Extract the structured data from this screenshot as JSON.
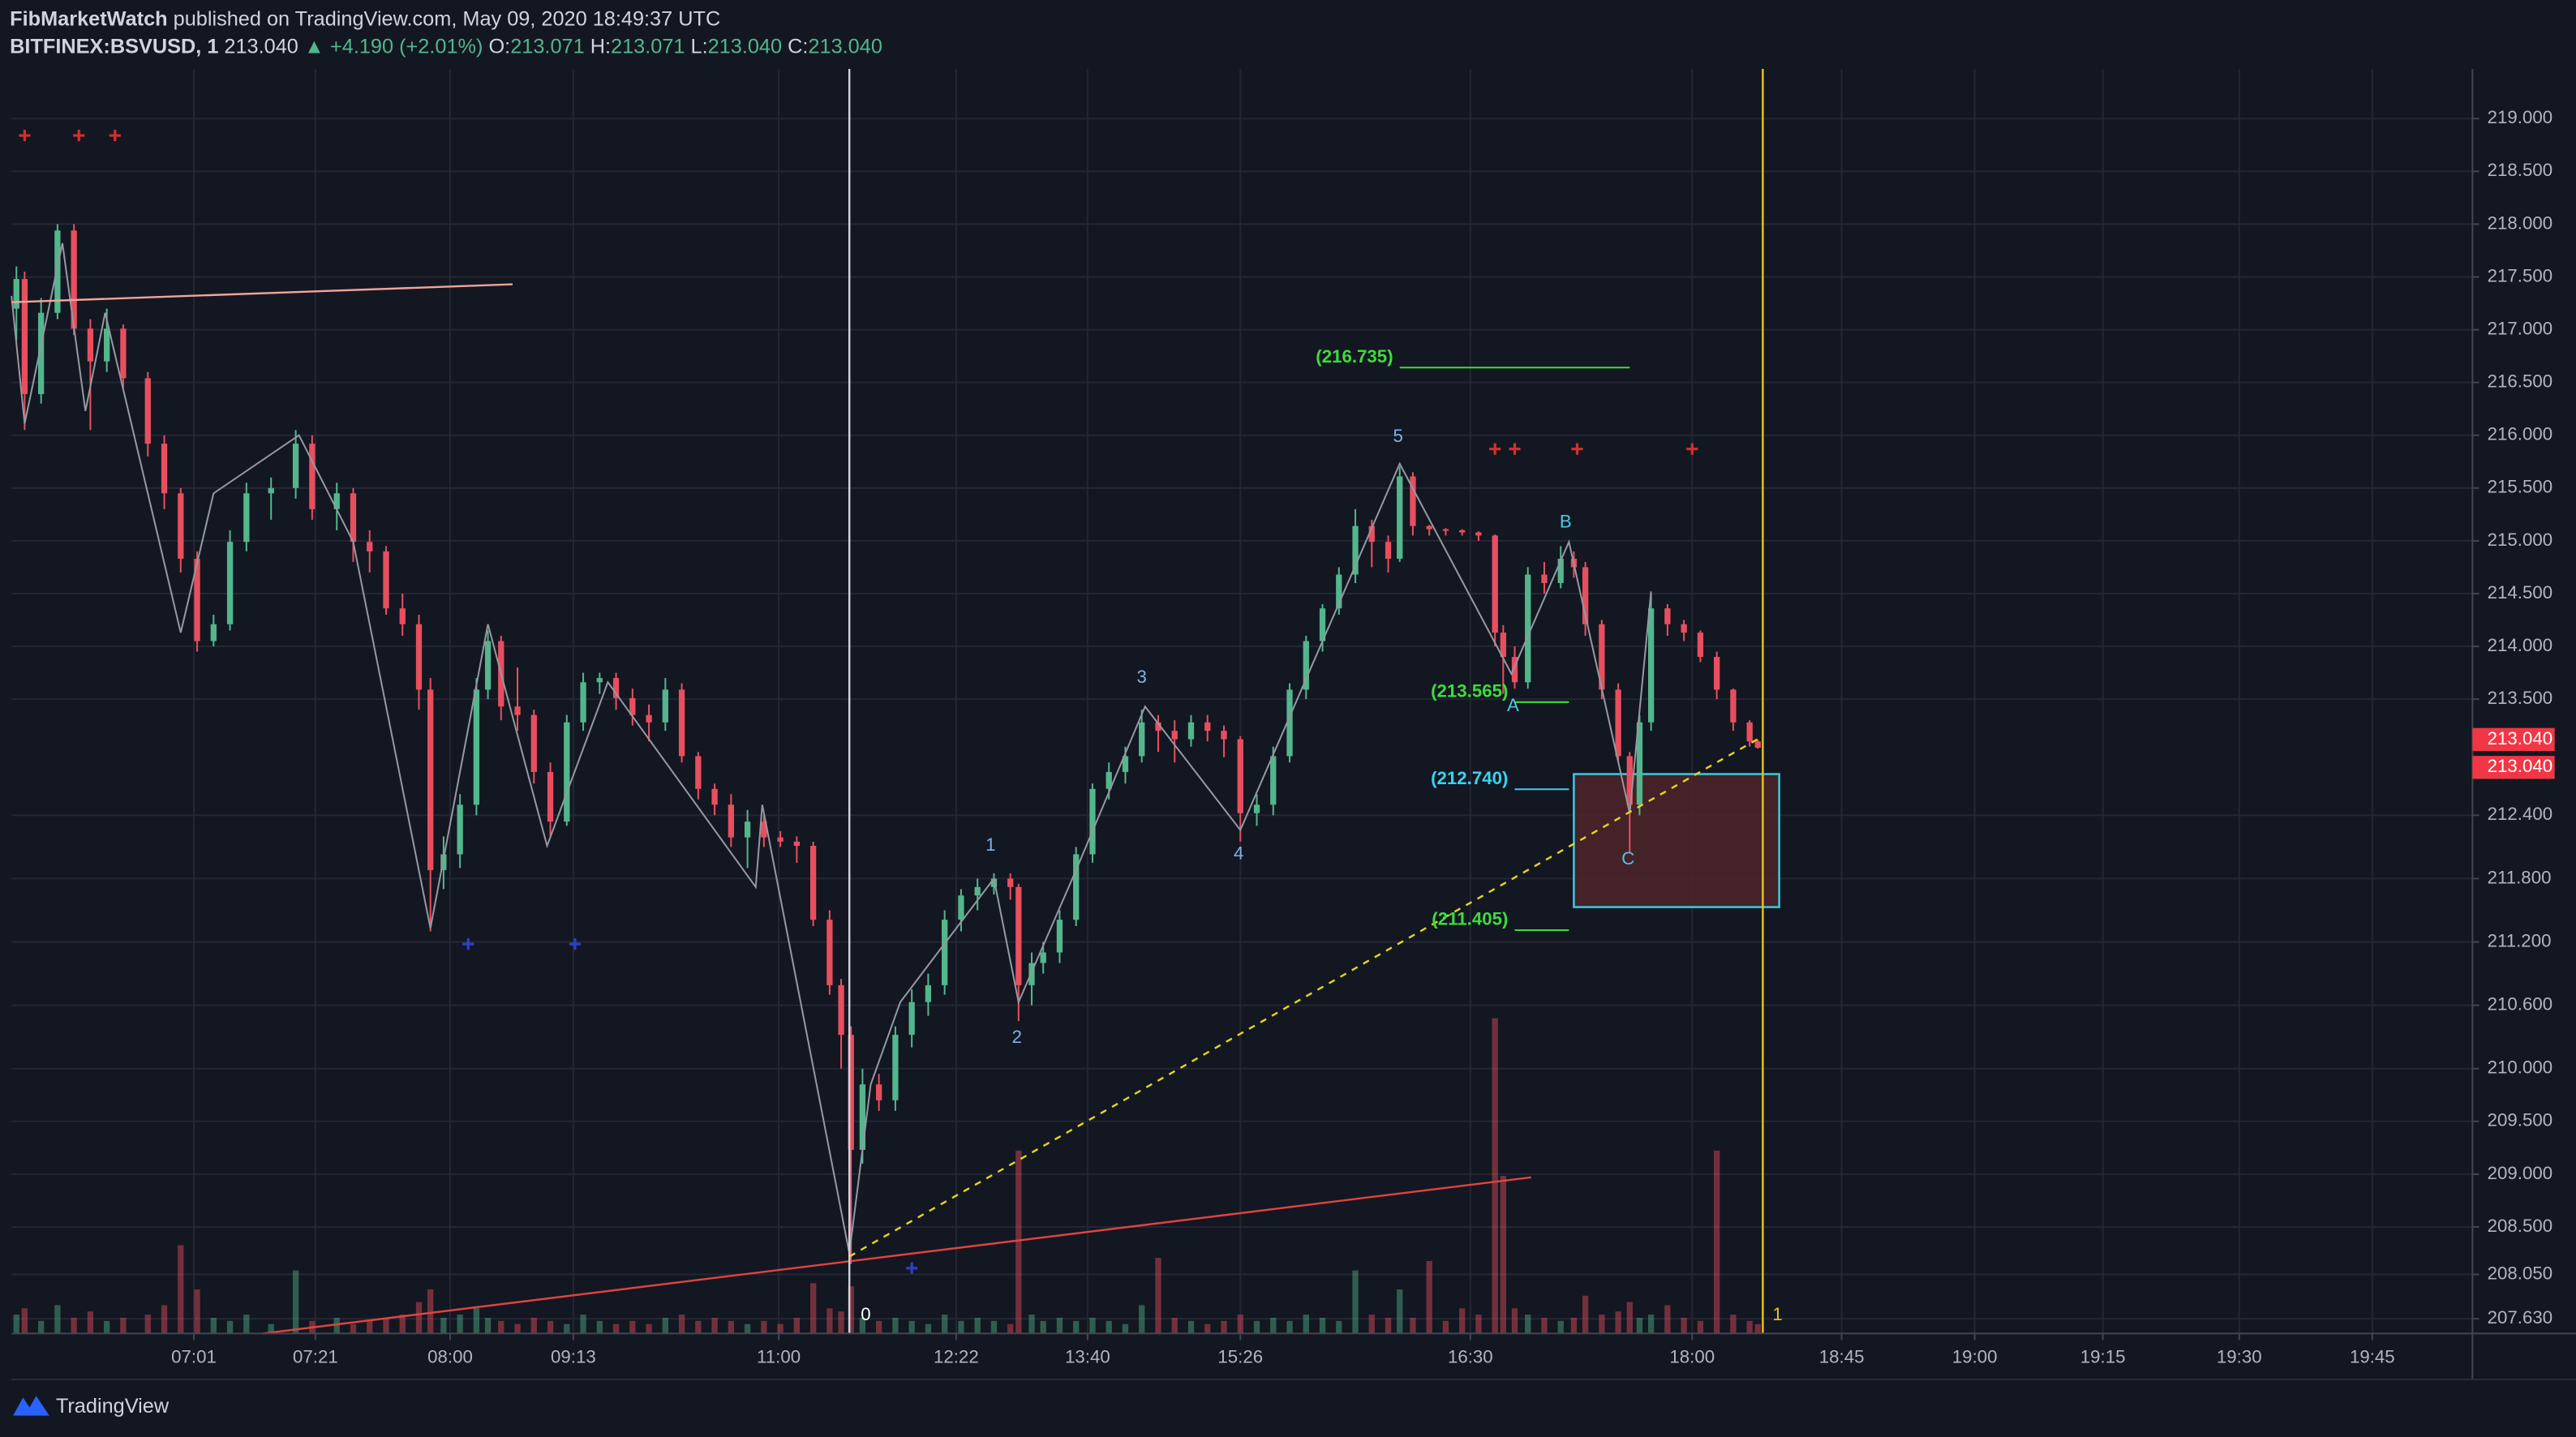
{
  "header": {
    "author": "FibMarketWatch",
    "published": "published on TradingView.com, May 09, 2020 18:49:37 UTC",
    "symbol": "BITFINEX:BSVUSD, 1",
    "last": "213.040",
    "change": "▲ +4.190 (+2.01%)",
    "ohlc": [
      {
        "key": "O:",
        "value": "213.071"
      },
      {
        "key": "H:",
        "value": "213.071"
      },
      {
        "key": "L:",
        "value": "213.040"
      },
      {
        "key": "C:",
        "value": "213.040"
      }
    ],
    "brand": "TradingView"
  },
  "chart_data": {
    "type": "candlestick",
    "up_color": "#53b68c",
    "down_color": "#e84f5e",
    "grid": true,
    "xlim": [
      1.4,
      301
    ],
    "ylim": [
      207.49,
      219.47
    ],
    "xticks": [
      {
        "value": 23.6,
        "label": "07:01"
      },
      {
        "value": 38.4,
        "label": "07:21"
      },
      {
        "value": 54.8,
        "label": "08:00"
      },
      {
        "value": 69.8,
        "label": "09:13"
      },
      {
        "value": 94.8,
        "label": "11:00"
      },
      {
        "value": 116.4,
        "label": "12:22"
      },
      {
        "value": 132.4,
        "label": "13:40"
      },
      {
        "value": 151,
        "label": "15:26"
      },
      {
        "value": 179,
        "label": "16:30"
      },
      {
        "value": 206,
        "label": "18:00"
      },
      {
        "value": 224.2,
        "label": "18:45"
      },
      {
        "value": 240.4,
        "label": "19:00"
      },
      {
        "value": 256,
        "label": "19:15"
      },
      {
        "value": 272.6,
        "label": "19:30"
      },
      {
        "value": 288.8,
        "label": "19:45"
      }
    ],
    "yticks": [
      {
        "value": 219,
        "label": "219.000"
      },
      {
        "value": 218.5,
        "label": "218.500"
      },
      {
        "value": 218,
        "label": "218.000"
      },
      {
        "value": 217.5,
        "label": "217.500"
      },
      {
        "value": 217,
        "label": "217.000"
      },
      {
        "value": 216.5,
        "label": "216.500"
      },
      {
        "value": 216,
        "label": "216.000"
      },
      {
        "value": 215.5,
        "label": "215.500"
      },
      {
        "value": 215,
        "label": "215.000"
      },
      {
        "value": 214.5,
        "label": "214.500"
      },
      {
        "value": 214,
        "label": "214.000"
      },
      {
        "value": 213.5,
        "label": "213.500"
      },
      {
        "value": 212.4,
        "label": "212.400"
      },
      {
        "value": 211.8,
        "label": "211.800"
      },
      {
        "value": 211.2,
        "label": "211.200"
      },
      {
        "value": 210.6,
        "label": "210.600"
      },
      {
        "value": 210,
        "label": "210.000"
      },
      {
        "value": 209.5,
        "label": "209.500"
      },
      {
        "value": 209,
        "label": "209.000"
      },
      {
        "value": 208.5,
        "label": "208.500"
      },
      {
        "value": 208.05,
        "label": "208.050"
      },
      {
        "value": 207.63,
        "label": "207.630"
      }
    ],
    "x": [
      2,
      3,
      5,
      7,
      9,
      11,
      13,
      15,
      18,
      20,
      22,
      24,
      26,
      28,
      30,
      33,
      36,
      38,
      41,
      43,
      45,
      47,
      49,
      51,
      52.4,
      54,
      56,
      58,
      59.4,
      61,
      63,
      65,
      67,
      69,
      71,
      73,
      75,
      77,
      79,
      81,
      83,
      85,
      87,
      89,
      91,
      93,
      95,
      97,
      99,
      101,
      102.4,
      103.6,
      105,
      107,
      109,
      111,
      113,
      115,
      117,
      119,
      121,
      123,
      124,
      125.6,
      127,
      129,
      131,
      133,
      135,
      137,
      139,
      141,
      143,
      145,
      147,
      149,
      151,
      153,
      155,
      157,
      159,
      161,
      163,
      165,
      167,
      169,
      170.4,
      172,
      174,
      176,
      178,
      180,
      182,
      183,
      184.4,
      186,
      188,
      190,
      191.6,
      193,
      195,
      197,
      198.4,
      199.6,
      201,
      203,
      205,
      207,
      209,
      211,
      213,
      214
    ],
    "open": [
      217.2,
      217.48,
      216.39,
      217.16,
      217.94,
      217.01,
      216.7,
      217.01,
      216.54,
      215.92,
      215.45,
      214.83,
      214.05,
      214.21,
      214.99,
      215.45,
      215.5,
      215.92,
      215.3,
      215.45,
      214.99,
      214.9,
      214.36,
      214.21,
      213.59,
      211.88,
      212.03,
      212.5,
      213.59,
      214.05,
      213.43,
      213.35,
      212.81,
      212.34,
      213.28,
      213.66,
      213.7,
      213.51,
      213.35,
      213.28,
      213.59,
      212.96,
      212.65,
      212.5,
      212.19,
      212.34,
      212.19,
      212.15,
      212.11,
      211.41,
      210.79,
      210.32,
      209.23,
      209.85,
      209.7,
      210.32,
      210.63,
      210.79,
      211.41,
      211.64,
      211.72,
      211.8,
      211.72,
      210.79,
      211.0,
      211.1,
      211.41,
      212.03,
      212.65,
      212.81,
      212.96,
      213.28,
      213.2,
      213.12,
      213.28,
      213.2,
      213.12,
      212.42,
      212.5,
      212.96,
      213.59,
      214.05,
      214.36,
      214.68,
      215.14,
      214.99,
      214.83,
      215.61,
      215.14,
      215.11,
      215.1,
      215.08,
      215.05,
      214.13,
      213.9,
      213.66,
      214.68,
      214.6,
      214.83,
      214.75,
      214.21,
      213.59,
      212.96,
      212.5,
      213.28,
      214.36,
      214.21,
      214.13,
      213.9,
      213.59,
      213.28,
      213.1
    ],
    "high": [
      217.6,
      217.55,
      217.3,
      218.0,
      218.0,
      217.1,
      217.2,
      217.05,
      216.6,
      216.0,
      215.5,
      214.9,
      214.3,
      215.1,
      215.55,
      215.6,
      216.05,
      216.0,
      215.55,
      215.5,
      215.1,
      214.95,
      214.5,
      214.3,
      213.7,
      212.2,
      212.6,
      213.7,
      214.15,
      214.1,
      213.8,
      213.4,
      212.9,
      213.35,
      213.75,
      213.75,
      213.75,
      213.6,
      213.45,
      213.7,
      213.65,
      213.0,
      212.7,
      212.6,
      212.45,
      212.4,
      212.25,
      212.2,
      212.15,
      211.5,
      210.85,
      210.4,
      210.0,
      209.95,
      210.4,
      210.75,
      210.9,
      211.5,
      211.7,
      211.8,
      211.85,
      211.85,
      211.75,
      211.1,
      211.2,
      211.5,
      212.1,
      212.7,
      212.9,
      213.05,
      213.4,
      213.35,
      213.3,
      213.35,
      213.35,
      213.25,
      213.15,
      212.6,
      213.05,
      213.65,
      214.1,
      214.4,
      214.75,
      215.3,
      215.2,
      215.05,
      215.7,
      215.65,
      215.15,
      215.12,
      215.11,
      215.09,
      215.06,
      214.2,
      214.0,
      214.75,
      214.8,
      214.95,
      214.9,
      214.8,
      214.25,
      213.65,
      213.0,
      213.35,
      214.5,
      214.4,
      214.25,
      214.15,
      213.95,
      213.6,
      213.3,
      213.12
    ],
    "low": [
      216.9,
      216.05,
      216.3,
      217.1,
      216.95,
      216.05,
      216.6,
      216.45,
      215.8,
      215.3,
      214.7,
      213.95,
      214.0,
      214.15,
      214.9,
      215.2,
      215.4,
      215.2,
      215.1,
      214.8,
      214.7,
      214.3,
      214.1,
      213.4,
      211.3,
      211.7,
      211.9,
      212.4,
      213.5,
      213.3,
      213.2,
      212.7,
      212.2,
      212.3,
      213.2,
      213.55,
      213.4,
      213.25,
      213.1,
      213.2,
      212.9,
      212.55,
      212.4,
      212.1,
      211.9,
      212.1,
      212.1,
      211.95,
      211.35,
      210.7,
      210.0,
      208.15,
      209.1,
      209.6,
      209.6,
      210.2,
      210.5,
      210.7,
      211.3,
      211.5,
      211.65,
      211.6,
      210.45,
      210.6,
      210.9,
      211.0,
      211.35,
      211.95,
      212.55,
      212.7,
      212.9,
      213.0,
      212.9,
      213.05,
      213.1,
      212.95,
      212.15,
      212.3,
      212.4,
      212.9,
      213.5,
      213.95,
      214.3,
      214.6,
      214.75,
      214.7,
      214.8,
      215.05,
      215.05,
      215.05,
      215.05,
      215.0,
      214.0,
      213.55,
      213.6,
      213.6,
      214.5,
      214.55,
      214.65,
      214.1,
      213.5,
      212.9,
      212.05,
      212.4,
      213.2,
      214.1,
      214.05,
      213.85,
      213.5,
      213.2,
      213.05,
      213.03
    ],
    "close": [
      217.48,
      216.39,
      217.16,
      217.94,
      217.01,
      216.7,
      217.01,
      216.54,
      215.92,
      215.45,
      214.83,
      214.05,
      214.21,
      214.99,
      215.45,
      215.5,
      215.92,
      215.3,
      215.45,
      214.99,
      214.9,
      214.36,
      214.21,
      213.59,
      211.88,
      212.03,
      212.5,
      213.59,
      214.05,
      213.43,
      213.35,
      212.81,
      212.34,
      213.28,
      213.66,
      213.7,
      213.51,
      213.35,
      213.28,
      213.59,
      212.96,
      212.65,
      212.5,
      212.19,
      212.34,
      212.19,
      212.15,
      212.11,
      211.41,
      210.79,
      210.32,
      209.23,
      209.85,
      209.7,
      210.32,
      210.63,
      210.79,
      211.41,
      211.64,
      211.72,
      211.8,
      211.72,
      210.79,
      211.0,
      211.1,
      211.41,
      212.03,
      212.65,
      212.81,
      212.96,
      213.28,
      213.2,
      213.12,
      213.28,
      213.2,
      213.12,
      212.42,
      212.5,
      212.96,
      213.59,
      214.05,
      214.36,
      214.68,
      215.14,
      214.99,
      214.83,
      215.61,
      215.14,
      215.11,
      215.1,
      215.08,
      215.05,
      214.13,
      213.9,
      213.66,
      214.68,
      214.6,
      214.83,
      214.75,
      214.21,
      213.59,
      212.96,
      212.5,
      213.28,
      214.36,
      214.21,
      214.13,
      213.9,
      213.59,
      213.28,
      213.1,
      213.04
    ],
    "volume": [
      6,
      8,
      4,
      9,
      5,
      7,
      4,
      5,
      6,
      9,
      28,
      14,
      5,
      4,
      6,
      3,
      20,
      4,
      5,
      3,
      4,
      5,
      6,
      10,
      14,
      5,
      6,
      8,
      5,
      4,
      3,
      5,
      4,
      3,
      6,
      4,
      3,
      4,
      3,
      5,
      6,
      4,
      5,
      4,
      3,
      4,
      3,
      5,
      16,
      8,
      7,
      15,
      5,
      4,
      5,
      4,
      3,
      6,
      4,
      5,
      4,
      3,
      58,
      6,
      4,
      5,
      4,
      5,
      4,
      3,
      9,
      24,
      5,
      4,
      3,
      4,
      6,
      4,
      5,
      4,
      6,
      5,
      4,
      20,
      6,
      5,
      14,
      5,
      23,
      4,
      8,
      6,
      100,
      50,
      8,
      6,
      5,
      4,
      5,
      12,
      6,
      7,
      10,
      5,
      6,
      9,
      5,
      4,
      58,
      6,
      4,
      3
    ],
    "price_tags": [
      {
        "value": 213.04,
        "label": "213.040"
      },
      {
        "value": 213.04,
        "label": "213.040"
      }
    ],
    "levels": [
      {
        "label": "(216.735)",
        "value": 216.735,
        "color": "#3ddc3d",
        "x": [
          170.4,
          198.4
        ]
      },
      {
        "label": "(213.565)",
        "value": 213.565,
        "color": "#3ddc3d",
        "x": [
          184.4,
          191
        ]
      },
      {
        "label": "(212.740)",
        "value": 212.74,
        "color": "#38d4ee",
        "x": [
          184.4,
          191
        ]
      },
      {
        "label": "(211.405)",
        "value": 211.405,
        "color": "#3ddc3d",
        "x": [
          184.4,
          191
        ]
      }
    ],
    "annotations": [
      {
        "text": "1",
        "x": 120.6,
        "y": 212.11,
        "color": "#7fb2e8"
      },
      {
        "text": "2",
        "x": 123.8,
        "y": 210.29,
        "color": "#7fb2e8"
      },
      {
        "text": "3",
        "x": 139,
        "y": 213.7,
        "color": "#7fb2e8"
      },
      {
        "text": "4",
        "x": 150.8,
        "y": 212.03,
        "color": "#7fb2e8"
      },
      {
        "text": "5",
        "x": 170.2,
        "y": 215.98,
        "color": "#7fb2e8"
      },
      {
        "text": "A",
        "x": 184.2,
        "y": 213.43,
        "color": "#4fc6e2"
      },
      {
        "text": "B",
        "x": 190.6,
        "y": 215.17,
        "color": "#4fc6e2"
      },
      {
        "text": "C",
        "x": 198.2,
        "y": 211.98,
        "color": "#4fc6e2"
      },
      {
        "text": "0",
        "x": 105.4,
        "y": 207.66,
        "color": "#ffffff"
      },
      {
        "text": "1",
        "x": 216.4,
        "y": 207.66,
        "color": "#e6c619"
      }
    ],
    "lines": [
      {
        "x": [
          1.4,
          62.4
        ],
        "y": [
          217.26,
          217.43
        ],
        "color": "#f0a59a",
        "dashed": false
      },
      {
        "x": [
          32,
          186.4
        ],
        "y": [
          207.49,
          208.97
        ],
        "color": "#e0443f",
        "dashed": false
      },
      {
        "x": [
          103.4,
          214.4
        ],
        "y": [
          208.22,
          213.14
        ],
        "color": "#e6d619",
        "dashed": true
      }
    ],
    "vlines": [
      {
        "x": 103.4,
        "color": "#d1d4dc"
      },
      {
        "x": 214.6,
        "color": "#e6c619"
      }
    ],
    "wave_path": {
      "color": "#9598a1",
      "x": [
        1.4,
        3,
        7.6,
        10.4,
        12.8,
        22,
        26,
        36.4,
        43,
        52.4,
        59.4,
        66.6,
        74,
        92,
        92.8,
        103.4,
        106,
        109.6,
        121,
        124,
        131,
        139.4,
        151,
        170.4,
        184,
        191,
        198.4,
        201
      ],
      "y": [
        217.32,
        216.11,
        217.82,
        216.23,
        217.16,
        214.13,
        215.45,
        216.0,
        214.99,
        211.33,
        214.21,
        212.11,
        213.66,
        211.72,
        212.5,
        208.25,
        209.85,
        210.63,
        211.8,
        210.63,
        211.88,
        213.43,
        212.26,
        215.73,
        213.74,
        214.99,
        212.42,
        214.52
      ]
    },
    "zones": [
      {
        "x": [
          191.6,
          216.6
        ],
        "y": [
          212.79,
          211.53
        ],
        "stroke": "#3fc1d9",
        "fill": "#4e2429"
      }
    ],
    "markers": [
      {
        "color": "#d32f2f",
        "x": [
          3,
          9.6,
          14,
          182,
          184.4,
          192,
          206
        ],
        "y": [
          218.84,
          218.84,
          218.84,
          215.87,
          215.87,
          215.87,
          215.87
        ]
      },
      {
        "color": "#2e3fc8",
        "x": [
          57,
          70,
          111
        ],
        "y": [
          211.18,
          211.18,
          208.11
        ]
      }
    ]
  }
}
